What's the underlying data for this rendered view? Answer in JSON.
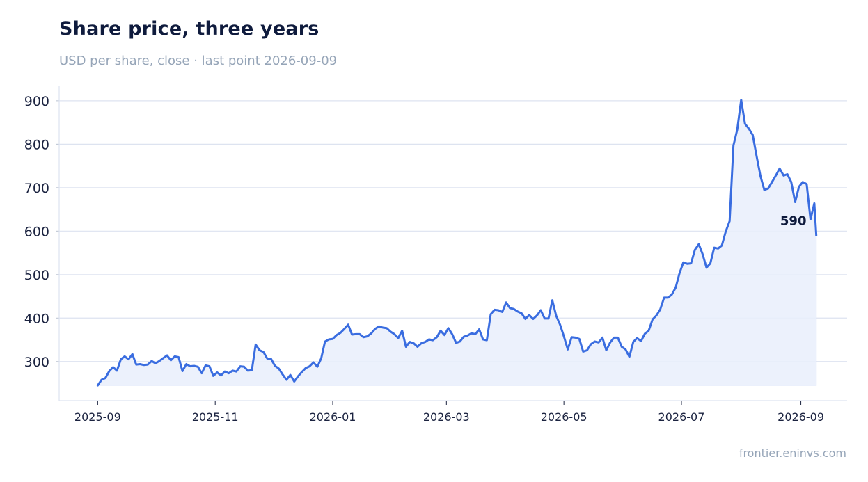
{
  "header": {
    "title": "Share price, three years",
    "subtitle": "USD per share, close · last point 2026-09-09"
  },
  "footer": {
    "source": "frontier.eninvs.com"
  },
  "colors": {
    "line": "#3a6de0",
    "area": "#e9effc",
    "grid": "#dde3f0",
    "axis": "#dde3f0"
  },
  "chart_data": {
    "type": "area",
    "title": "Share price, three years",
    "subtitle": "USD per share, close · last point 2026-09-09",
    "xlabel": "",
    "ylabel": "",
    "ylim": [
      210,
      935
    ],
    "xlim": [
      "2025-08-12",
      "2026-09-25"
    ],
    "yticks": [
      300,
      400,
      500,
      600,
      700,
      800,
      900
    ],
    "xticks": [
      "2025-09",
      "2025-11",
      "2026-01",
      "2026-03",
      "2026-05",
      "2026-07",
      "2026-09"
    ],
    "grid": true,
    "legend": "none",
    "end_label": "590",
    "series": [
      {
        "points": [
          [
            "2025-09-01",
            245
          ],
          [
            "2025-09-03",
            258
          ],
          [
            "2025-09-05",
            262
          ],
          [
            "2025-09-07",
            278
          ],
          [
            "2025-09-09",
            287
          ],
          [
            "2025-09-11",
            279
          ],
          [
            "2025-09-13",
            305
          ],
          [
            "2025-09-15",
            312
          ],
          [
            "2025-09-17",
            305
          ],
          [
            "2025-09-19",
            317
          ],
          [
            "2025-09-21",
            293
          ],
          [
            "2025-09-23",
            294
          ],
          [
            "2025-09-25",
            292
          ],
          [
            "2025-09-27",
            293
          ],
          [
            "2025-09-29",
            301
          ],
          [
            "2025-10-01",
            296
          ],
          [
            "2025-10-03",
            301
          ],
          [
            "2025-10-05",
            308
          ],
          [
            "2025-10-07",
            314
          ],
          [
            "2025-10-09",
            303
          ],
          [
            "2025-10-11",
            312
          ],
          [
            "2025-10-13",
            310
          ],
          [
            "2025-10-15",
            278
          ],
          [
            "2025-10-17",
            294
          ],
          [
            "2025-10-19",
            289
          ],
          [
            "2025-10-21",
            290
          ],
          [
            "2025-10-23",
            288
          ],
          [
            "2025-10-25",
            273
          ],
          [
            "2025-10-27",
            291
          ],
          [
            "2025-10-29",
            289
          ],
          [
            "2025-10-31",
            267
          ],
          [
            "2025-11-02",
            275
          ],
          [
            "2025-11-04",
            268
          ],
          [
            "2025-11-06",
            277
          ],
          [
            "2025-11-08",
            273
          ],
          [
            "2025-11-10",
            279
          ],
          [
            "2025-11-12",
            277
          ],
          [
            "2025-11-14",
            289
          ],
          [
            "2025-11-16",
            288
          ],
          [
            "2025-11-18",
            279
          ],
          [
            "2025-11-20",
            280
          ],
          [
            "2025-11-22",
            339
          ],
          [
            "2025-11-24",
            326
          ],
          [
            "2025-11-26",
            322
          ],
          [
            "2025-11-28",
            307
          ],
          [
            "2025-11-30",
            306
          ],
          [
            "2025-12-02",
            290
          ],
          [
            "2025-12-04",
            284
          ],
          [
            "2025-12-06",
            270
          ],
          [
            "2025-12-08",
            258
          ],
          [
            "2025-12-10",
            269
          ],
          [
            "2025-12-12",
            254
          ],
          [
            "2025-12-14",
            266
          ],
          [
            "2025-12-16",
            276
          ],
          [
            "2025-12-18",
            285
          ],
          [
            "2025-12-20",
            289
          ],
          [
            "2025-12-22",
            298
          ],
          [
            "2025-12-24",
            288
          ],
          [
            "2025-12-26",
            307
          ],
          [
            "2025-12-28",
            346
          ],
          [
            "2025-12-30",
            351
          ],
          [
            "2026-01-01",
            352
          ],
          [
            "2026-01-03",
            361
          ],
          [
            "2026-01-05",
            366
          ],
          [
            "2026-01-07",
            375
          ],
          [
            "2026-01-09",
            385
          ],
          [
            "2026-01-11",
            362
          ],
          [
            "2026-01-13",
            363
          ],
          [
            "2026-01-15",
            363
          ],
          [
            "2026-01-17",
            356
          ],
          [
            "2026-01-19",
            358
          ],
          [
            "2026-01-21",
            365
          ],
          [
            "2026-01-23",
            375
          ],
          [
            "2026-01-25",
            381
          ],
          [
            "2026-01-27",
            378
          ],
          [
            "2026-01-29",
            377
          ],
          [
            "2026-01-31",
            369
          ],
          [
            "2026-02-02",
            363
          ],
          [
            "2026-02-04",
            354
          ],
          [
            "2026-02-06",
            371
          ],
          [
            "2026-02-08",
            334
          ],
          [
            "2026-02-10",
            345
          ],
          [
            "2026-02-12",
            342
          ],
          [
            "2026-02-14",
            334
          ],
          [
            "2026-02-16",
            342
          ],
          [
            "2026-02-18",
            345
          ],
          [
            "2026-02-20",
            351
          ],
          [
            "2026-02-22",
            349
          ],
          [
            "2026-02-24",
            356
          ],
          [
            "2026-02-26",
            371
          ],
          [
            "2026-02-28",
            361
          ],
          [
            "2026-03-02",
            377
          ],
          [
            "2026-03-04",
            363
          ],
          [
            "2026-03-06",
            343
          ],
          [
            "2026-03-08",
            346
          ],
          [
            "2026-03-10",
            357
          ],
          [
            "2026-03-12",
            360
          ],
          [
            "2026-03-14",
            365
          ],
          [
            "2026-03-16",
            363
          ],
          [
            "2026-03-18",
            374
          ],
          [
            "2026-03-20",
            351
          ],
          [
            "2026-03-22",
            349
          ],
          [
            "2026-03-24",
            409
          ],
          [
            "2026-03-26",
            419
          ],
          [
            "2026-03-28",
            418
          ],
          [
            "2026-03-30",
            414
          ],
          [
            "2026-04-01",
            436
          ],
          [
            "2026-04-03",
            423
          ],
          [
            "2026-04-05",
            421
          ],
          [
            "2026-04-07",
            415
          ],
          [
            "2026-04-09",
            411
          ],
          [
            "2026-04-11",
            398
          ],
          [
            "2026-04-13",
            407
          ],
          [
            "2026-04-15",
            398
          ],
          [
            "2026-04-17",
            406
          ],
          [
            "2026-04-19",
            418
          ],
          [
            "2026-04-21",
            399
          ],
          [
            "2026-04-23",
            399
          ],
          [
            "2026-04-25",
            441
          ],
          [
            "2026-04-27",
            405
          ],
          [
            "2026-04-29",
            385
          ],
          [
            "2026-05-01",
            358
          ],
          [
            "2026-05-03",
            328
          ],
          [
            "2026-05-05",
            356
          ],
          [
            "2026-05-07",
            355
          ],
          [
            "2026-05-09",
            352
          ],
          [
            "2026-05-11",
            323
          ],
          [
            "2026-05-13",
            326
          ],
          [
            "2026-05-15",
            340
          ],
          [
            "2026-05-17",
            346
          ],
          [
            "2026-05-19",
            344
          ],
          [
            "2026-05-21",
            355
          ],
          [
            "2026-05-23",
            326
          ],
          [
            "2026-05-25",
            344
          ],
          [
            "2026-05-27",
            355
          ],
          [
            "2026-05-29",
            355
          ],
          [
            "2026-05-31",
            334
          ],
          [
            "2026-06-02",
            328
          ],
          [
            "2026-06-04",
            311
          ],
          [
            "2026-06-06",
            345
          ],
          [
            "2026-06-08",
            354
          ],
          [
            "2026-06-10",
            347
          ],
          [
            "2026-06-12",
            364
          ],
          [
            "2026-06-14",
            371
          ],
          [
            "2026-06-16",
            397
          ],
          [
            "2026-06-18",
            406
          ],
          [
            "2026-06-20",
            420
          ],
          [
            "2026-06-22",
            447
          ],
          [
            "2026-06-24",
            447
          ],
          [
            "2026-06-26",
            454
          ],
          [
            "2026-06-28",
            470
          ],
          [
            "2026-06-30",
            503
          ],
          [
            "2026-07-02",
            528
          ],
          [
            "2026-07-04",
            525
          ],
          [
            "2026-07-06",
            526
          ],
          [
            "2026-07-08",
            557
          ],
          [
            "2026-07-10",
            570
          ],
          [
            "2026-07-12",
            547
          ],
          [
            "2026-07-14",
            516
          ],
          [
            "2026-07-16",
            526
          ],
          [
            "2026-07-18",
            562
          ],
          [
            "2026-07-20",
            560
          ],
          [
            "2026-07-22",
            567
          ],
          [
            "2026-07-24",
            599
          ],
          [
            "2026-07-26",
            623
          ],
          [
            "2026-07-28",
            797
          ],
          [
            "2026-07-30",
            834
          ],
          [
            "2026-08-01",
            902
          ],
          [
            "2026-08-03",
            847
          ],
          [
            "2026-08-05",
            836
          ],
          [
            "2026-08-07",
            821
          ],
          [
            "2026-08-09",
            773
          ],
          [
            "2026-08-11",
            727
          ],
          [
            "2026-08-13",
            695
          ],
          [
            "2026-08-15",
            698
          ],
          [
            "2026-08-17",
            713
          ],
          [
            "2026-08-19",
            728
          ],
          [
            "2026-08-21",
            744
          ],
          [
            "2026-08-23",
            728
          ],
          [
            "2026-08-25",
            731
          ],
          [
            "2026-08-27",
            713
          ],
          [
            "2026-08-29",
            667
          ],
          [
            "2026-08-31",
            702
          ],
          [
            "2026-09-02",
            713
          ],
          [
            "2026-09-04",
            708
          ],
          [
            "2026-09-06",
            627
          ],
          [
            "2026-09-08",
            664
          ],
          [
            "2026-09-09",
            590
          ]
        ]
      }
    ]
  }
}
